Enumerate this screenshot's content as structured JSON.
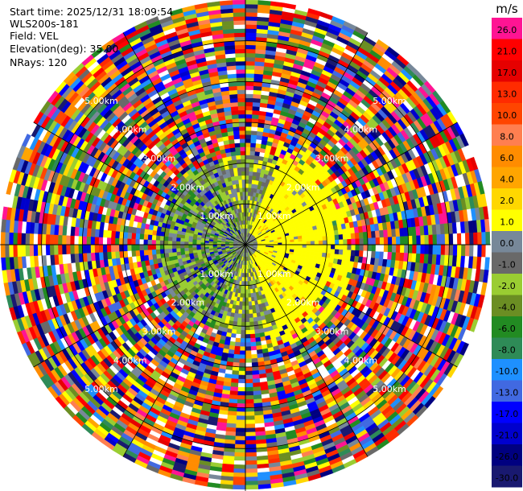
{
  "header": {
    "start_time": "Start time: 2025/12/31 18:09:54",
    "instrument": "WLS200s-181",
    "field": "Field: VEL",
    "elevation": "Elevation(deg): 35.00",
    "nrays": "NRays: 120"
  },
  "chart_data": {
    "type": "heatmap",
    "projection": "polar-ppi",
    "range_unit": "km",
    "max_range_km": 6,
    "ring_labels": [
      "1.00km",
      "2.00km",
      "3.00km",
      "4.00km",
      "5.00km"
    ],
    "ring_ranges_km": [
      1,
      2,
      3,
      4,
      5
    ],
    "spoke_azimuths_deg": [
      0,
      30,
      60,
      90,
      120,
      150,
      180,
      210,
      240,
      270,
      300,
      330
    ],
    "colorbar": {
      "unit": "m/s",
      "tick_labels": [
        "26.0",
        "21.0",
        "17.0",
        "13.0",
        "10.0",
        "8.0",
        "6.0",
        "4.0",
        "2.0",
        "1.0",
        "0.0",
        "-1.0",
        "-2.0",
        "-4.0",
        "-6.0",
        "-8.0",
        "-10.0",
        "-13.0",
        "-17.0",
        "-21.0",
        "-26.0",
        "-30.0"
      ],
      "colors": [
        "#ff1493",
        "#ff0000",
        "#e60000",
        "#ff2b00",
        "#ff4500",
        "#ff7f50",
        "#ff8c00",
        "#ffa500",
        "#ffd700",
        "#ffff00",
        "#778899",
        "#696969",
        "#9acd32",
        "#6b8e23",
        "#228b22",
        "#2e8b57",
        "#1e90ff",
        "#4169e1",
        "#0000ff",
        "#0000cd",
        "#000080",
        "#191970"
      ]
    }
  }
}
